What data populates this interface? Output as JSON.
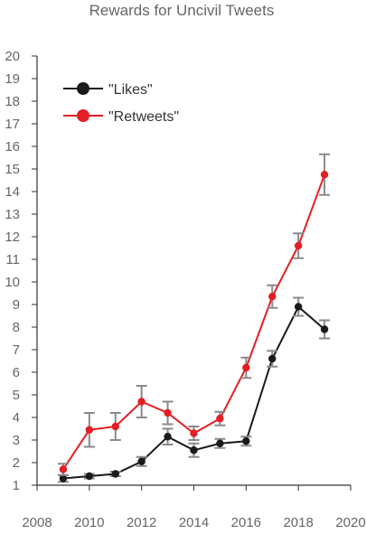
{
  "chart_data": {
    "type": "line",
    "title": "Rewards for Uncivil Tweets",
    "xlabel": "",
    "ylabel": "",
    "xlim": [
      2008,
      2020
    ],
    "ylim": [
      1,
      20
    ],
    "x_ticks": [
      2008,
      2010,
      2012,
      2014,
      2016,
      2018,
      2020
    ],
    "y_ticks": [
      1,
      2,
      3,
      4,
      5,
      6,
      7,
      8,
      9,
      10,
      11,
      12,
      13,
      14,
      15,
      16,
      17,
      18,
      19,
      20
    ],
    "grid": false,
    "legend_position": "top-left",
    "x": [
      2009,
      2010,
      2011,
      2012,
      2013,
      2014,
      2015,
      2016,
      2017,
      2018,
      2019
    ],
    "series": [
      {
        "name": "\"Likes\"",
        "color": "#1a1a1a",
        "values": [
          1.3,
          1.4,
          1.5,
          2.05,
          3.15,
          2.55,
          2.85,
          2.95,
          6.6,
          8.9,
          7.9
        ],
        "error": [
          0.15,
          0.1,
          0.1,
          0.2,
          0.35,
          0.3,
          0.2,
          0.2,
          0.35,
          0.4,
          0.4
        ]
      },
      {
        "name": "\"Retweets\"",
        "color": "#e31e24",
        "values": [
          1.7,
          3.45,
          3.6,
          4.7,
          4.2,
          3.3,
          3.95,
          6.2,
          9.35,
          11.6,
          14.75
        ],
        "error": [
          0.25,
          0.75,
          0.6,
          0.7,
          0.5,
          0.3,
          0.3,
          0.45,
          0.5,
          0.55,
          0.9
        ]
      }
    ]
  },
  "colors": {
    "axis": "#333333",
    "tick_text": "#666666",
    "error_bar": "#8a8a8a"
  }
}
